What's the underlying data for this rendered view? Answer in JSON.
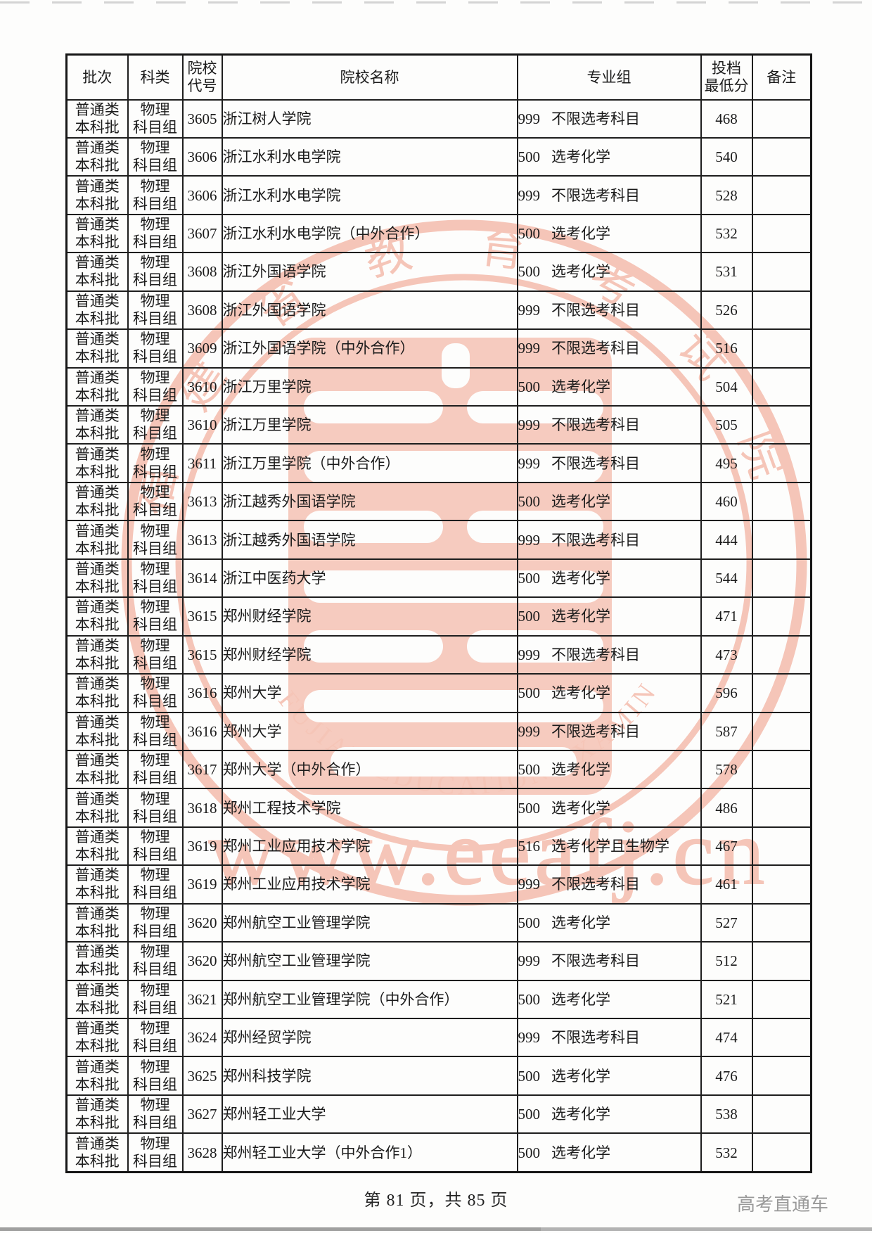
{
  "page": {
    "footer_page_info": "第 81 页，共 85 页",
    "brand": "高考直通车"
  },
  "watermark": {
    "color": "#ee8f76",
    "cn_ring_chars": [
      "福",
      "建",
      "省",
      "教",
      "育",
      "考",
      "试",
      "院"
    ],
    "en_arc_text": "FUJIAN EDUCATION EXAMINATIONS AUTHORITY",
    "url_text": "www.eeafj.cn"
  },
  "table": {
    "headers": {
      "batch": "批次",
      "subject": "科类",
      "code_l1": "院校",
      "code_l2": "代号",
      "name": "院校名称",
      "group": "专业组",
      "score_l1": "投档",
      "score_l2": "最低分",
      "note": "备注"
    },
    "common": {
      "batch_l1": "普通类",
      "batch_l2": "本科批",
      "subject_l1": "物理",
      "subject_l2": "科目组"
    },
    "rows": [
      {
        "code": "3605",
        "name": "浙江树人学院",
        "group_code": "999",
        "group_desc": "不限选考科目",
        "score": "468",
        "note": ""
      },
      {
        "code": "3606",
        "name": "浙江水利水电学院",
        "group_code": "500",
        "group_desc": "选考化学",
        "score": "540",
        "note": ""
      },
      {
        "code": "3606",
        "name": "浙江水利水电学院",
        "group_code": "999",
        "group_desc": "不限选考科目",
        "score": "528",
        "note": ""
      },
      {
        "code": "3607",
        "name": "浙江水利水电学院（中外合作）",
        "group_code": "500",
        "group_desc": "选考化学",
        "score": "532",
        "note": ""
      },
      {
        "code": "3608",
        "name": "浙江外国语学院",
        "group_code": "500",
        "group_desc": "选考化学",
        "score": "531",
        "note": ""
      },
      {
        "code": "3608",
        "name": "浙江外国语学院",
        "group_code": "999",
        "group_desc": "不限选考科目",
        "score": "526",
        "note": ""
      },
      {
        "code": "3609",
        "name": "浙江外国语学院（中外合作）",
        "group_code": "999",
        "group_desc": "不限选考科目",
        "score": "516",
        "note": ""
      },
      {
        "code": "3610",
        "name": "浙江万里学院",
        "group_code": "500",
        "group_desc": "选考化学",
        "score": "504",
        "note": ""
      },
      {
        "code": "3610",
        "name": "浙江万里学院",
        "group_code": "999",
        "group_desc": "不限选考科目",
        "score": "505",
        "note": ""
      },
      {
        "code": "3611",
        "name": "浙江万里学院（中外合作）",
        "group_code": "999",
        "group_desc": "不限选考科目",
        "score": "495",
        "note": ""
      },
      {
        "code": "3613",
        "name": "浙江越秀外国语学院",
        "group_code": "500",
        "group_desc": "选考化学",
        "score": "460",
        "note": ""
      },
      {
        "code": "3613",
        "name": "浙江越秀外国语学院",
        "group_code": "999",
        "group_desc": "不限选考科目",
        "score": "444",
        "note": ""
      },
      {
        "code": "3614",
        "name": "浙江中医药大学",
        "group_code": "500",
        "group_desc": "选考化学",
        "score": "544",
        "note": ""
      },
      {
        "code": "3615",
        "name": "郑州财经学院",
        "group_code": "500",
        "group_desc": "选考化学",
        "score": "471",
        "note": ""
      },
      {
        "code": "3615",
        "name": "郑州财经学院",
        "group_code": "999",
        "group_desc": "不限选考科目",
        "score": "473",
        "note": ""
      },
      {
        "code": "3616",
        "name": "郑州大学",
        "group_code": "500",
        "group_desc": "选考化学",
        "score": "596",
        "note": ""
      },
      {
        "code": "3616",
        "name": "郑州大学",
        "group_code": "999",
        "group_desc": "不限选考科目",
        "score": "587",
        "note": ""
      },
      {
        "code": "3617",
        "name": "郑州大学（中外合作）",
        "group_code": "500",
        "group_desc": "选考化学",
        "score": "578",
        "note": ""
      },
      {
        "code": "3618",
        "name": "郑州工程技术学院",
        "group_code": "500",
        "group_desc": "选考化学",
        "score": "486",
        "note": ""
      },
      {
        "code": "3619",
        "name": "郑州工业应用技术学院",
        "group_code": "516",
        "group_desc": "选考化学且生物学",
        "score": "467",
        "note": ""
      },
      {
        "code": "3619",
        "name": "郑州工业应用技术学院",
        "group_code": "999",
        "group_desc": "不限选考科目",
        "score": "461",
        "note": ""
      },
      {
        "code": "3620",
        "name": "郑州航空工业管理学院",
        "group_code": "500",
        "group_desc": "选考化学",
        "score": "527",
        "note": ""
      },
      {
        "code": "3620",
        "name": "郑州航空工业管理学院",
        "group_code": "999",
        "group_desc": "不限选考科目",
        "score": "512",
        "note": ""
      },
      {
        "code": "3621",
        "name": "郑州航空工业管理学院（中外合作）",
        "group_code": "500",
        "group_desc": "选考化学",
        "score": "521",
        "note": ""
      },
      {
        "code": "3624",
        "name": "郑州经贸学院",
        "group_code": "999",
        "group_desc": "不限选考科目",
        "score": "474",
        "note": ""
      },
      {
        "code": "3625",
        "name": "郑州科技学院",
        "group_code": "500",
        "group_desc": "选考化学",
        "score": "476",
        "note": ""
      },
      {
        "code": "3627",
        "name": "郑州轻工业大学",
        "group_code": "500",
        "group_desc": "选考化学",
        "score": "538",
        "note": ""
      },
      {
        "code": "3628",
        "name": "郑州轻工业大学（中外合作1）",
        "group_code": "500",
        "group_desc": "选考化学",
        "score": "532",
        "note": ""
      }
    ]
  }
}
